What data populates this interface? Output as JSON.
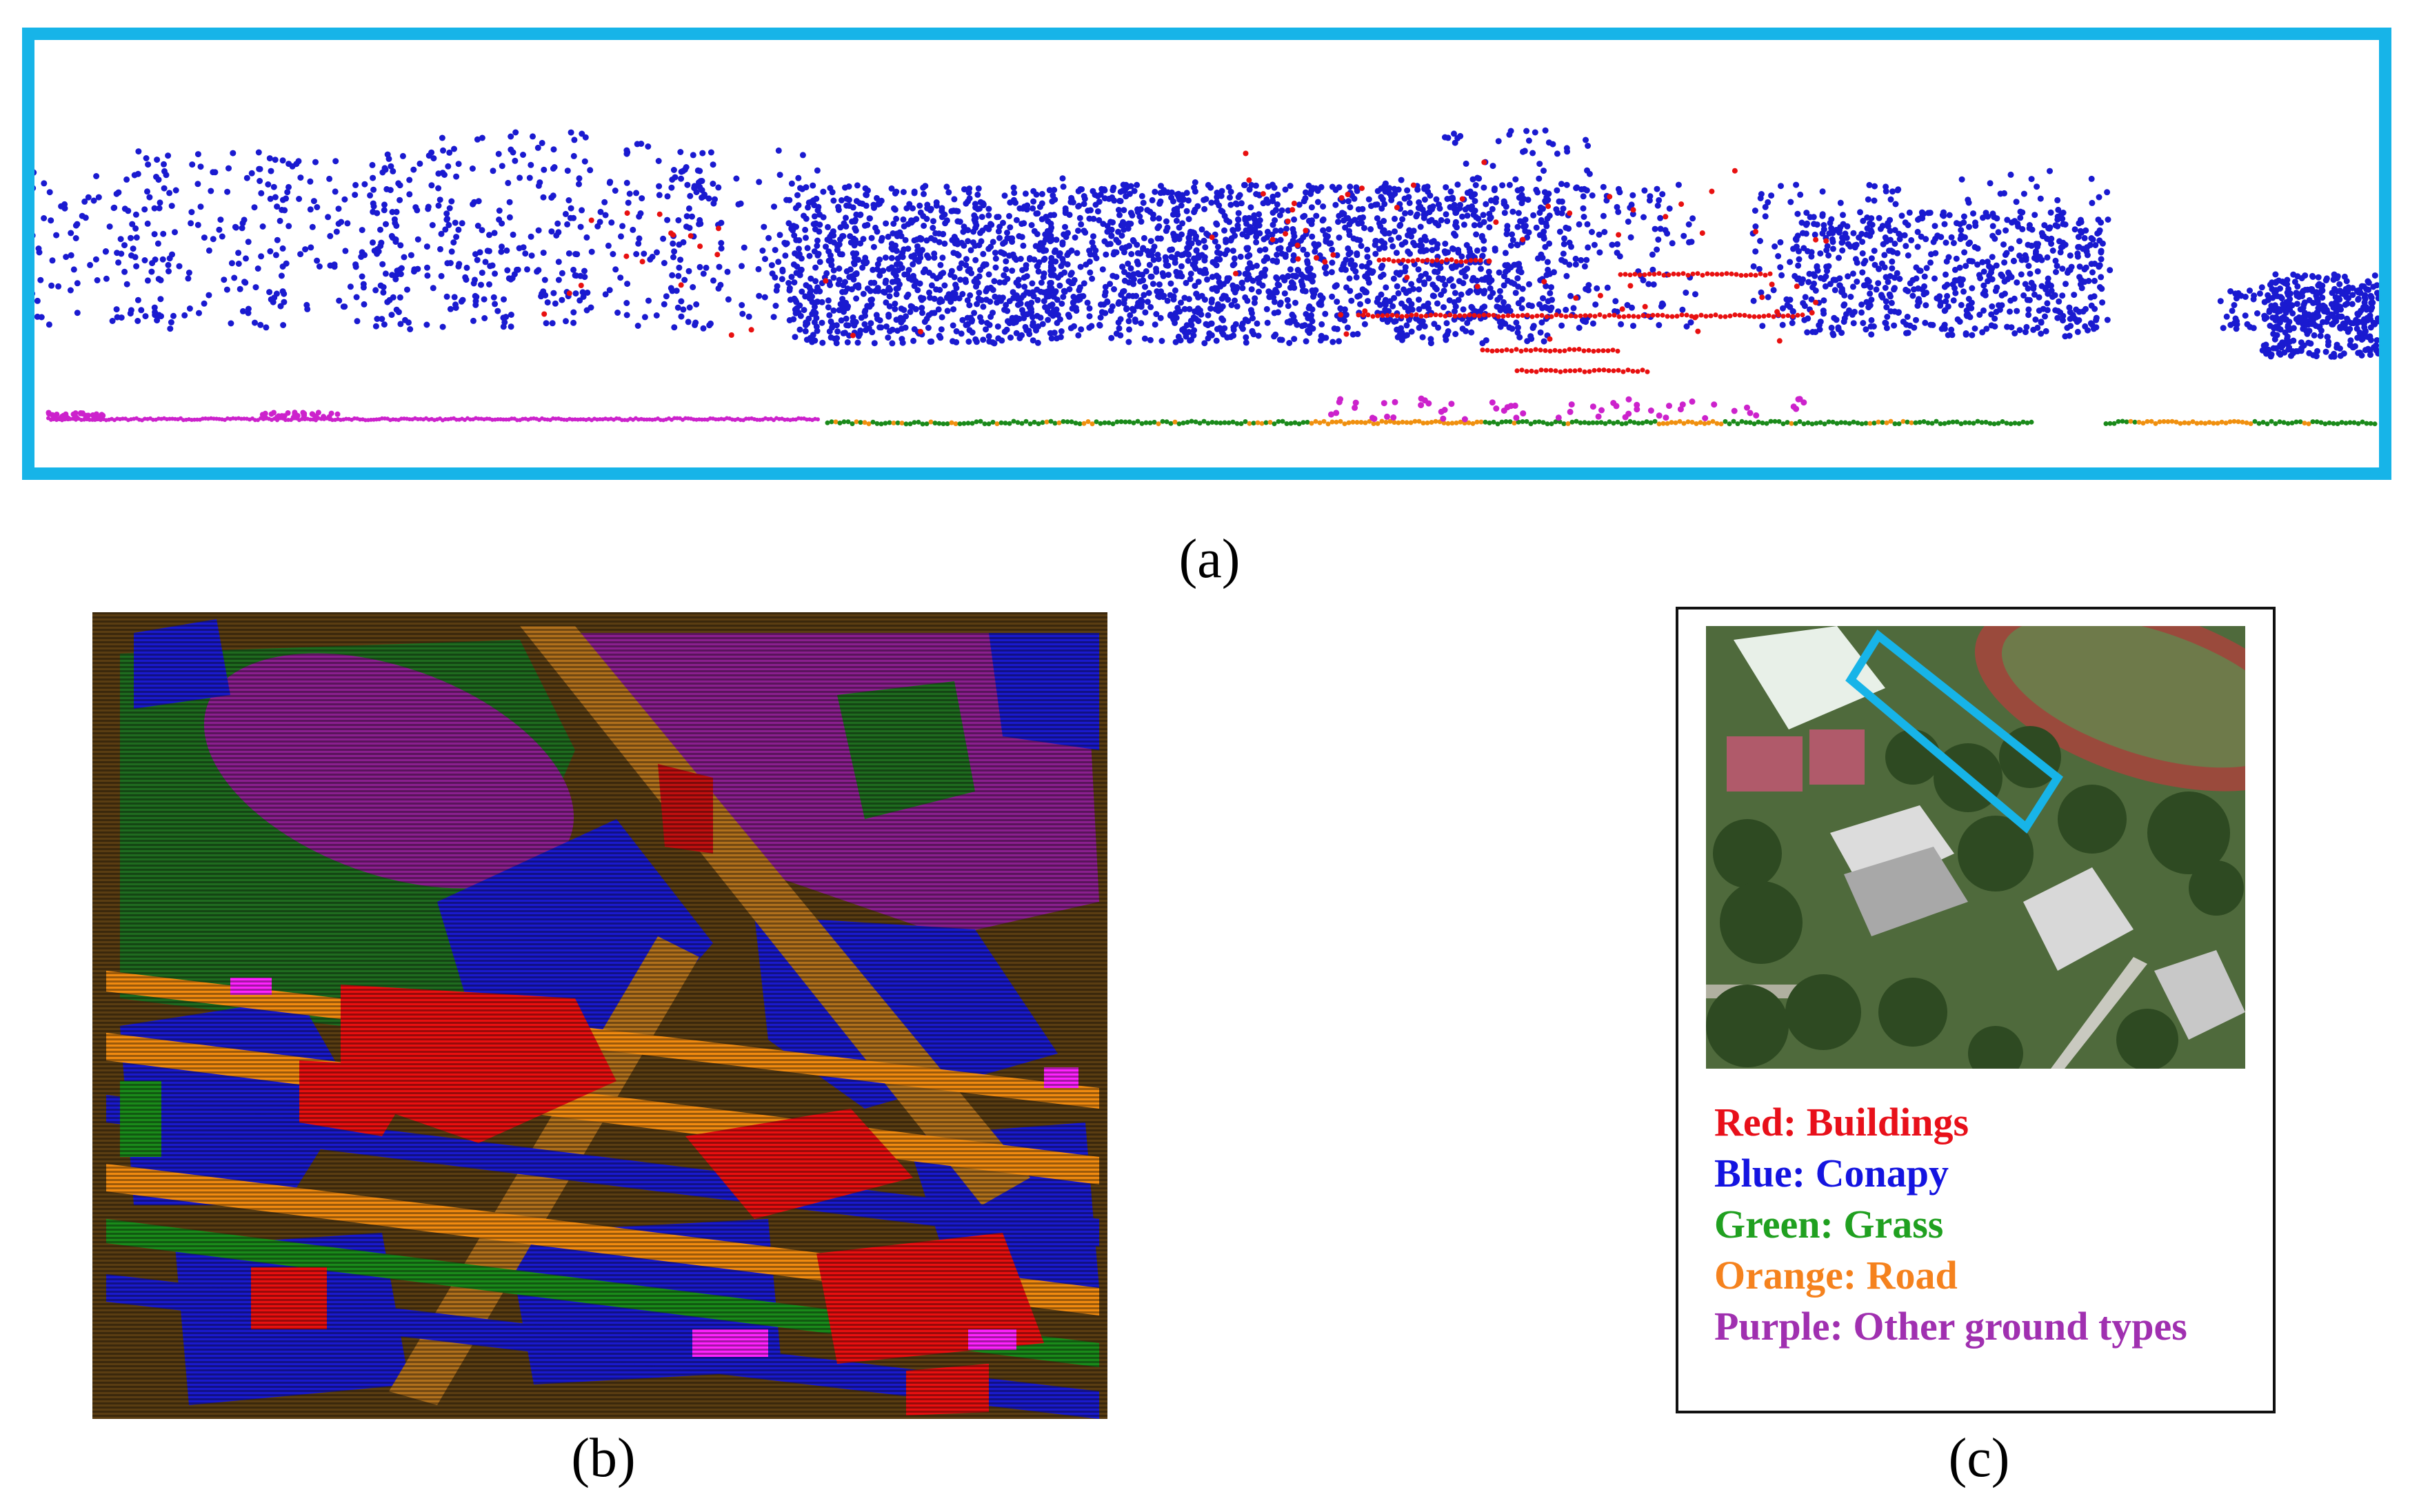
{
  "captions": {
    "a": "(a)",
    "b": "(b)",
    "c": "(c)"
  },
  "colors": {
    "frame": "#17b4e8",
    "canopy": "#1a1ad0",
    "building": "#e81010",
    "grass": "#1a8a1a",
    "road": "#f0900f",
    "other_ground": "#cc22cc"
  },
  "legend": [
    {
      "text": "Red: Buildings",
      "color": "#e8101a"
    },
    {
      "text": "Blue: Conapy",
      "color": "#1414e0"
    },
    {
      "text": "Green: Grass",
      "color": "#20a020"
    },
    {
      "text": "Orange: Road",
      "color": "#f5821e"
    },
    {
      "text": "Purple: Other ground types",
      "color": "#a030b0"
    }
  ]
}
